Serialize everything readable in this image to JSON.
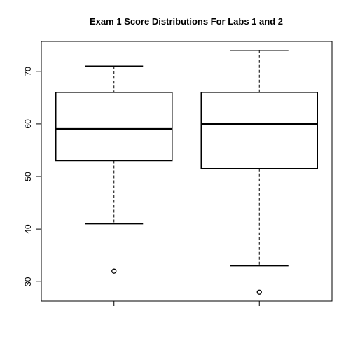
{
  "chart_data": {
    "type": "box",
    "title": "Exam 1 Score Distributions For Labs 1 and 2",
    "xlabel": "",
    "ylabel": "",
    "ylim": [
      26.3,
      75.7
    ],
    "yticks": [
      30,
      40,
      50,
      60,
      70
    ],
    "ytick_labels": [
      "30",
      "40",
      "50",
      "60",
      "70"
    ],
    "categories": [
      "",
      ""
    ],
    "boxes": [
      {
        "whisker_low": 41,
        "q1": 53,
        "median": 59,
        "q3": 66,
        "whisker_high": 71,
        "outliers": [
          32
        ]
      },
      {
        "whisker_low": 33,
        "q1": 51.5,
        "median": 60,
        "q3": 66,
        "whisker_high": 74,
        "outliers": [
          28
        ]
      }
    ],
    "grid": false,
    "legend": "none"
  }
}
